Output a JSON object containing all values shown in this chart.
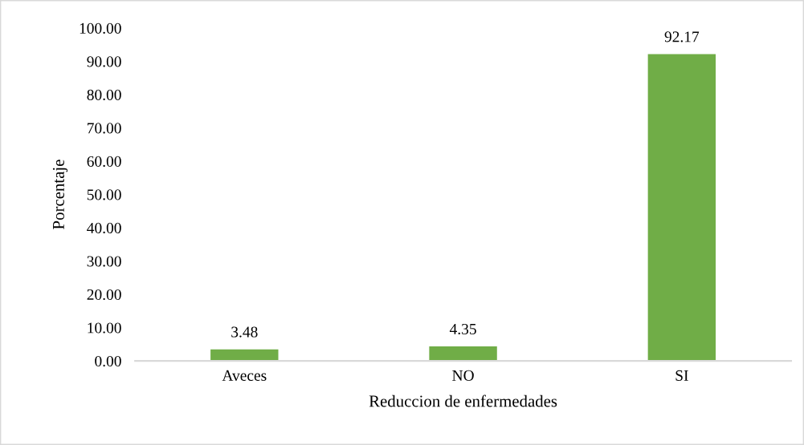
{
  "chart_data": {
    "type": "bar",
    "xlabel": "Reduccion de enfermedades",
    "ylabel": "Porcentaje",
    "categories": [
      "Aveces",
      "NO",
      "SI"
    ],
    "values": [
      3.48,
      4.35,
      92.17
    ],
    "color": "#70ad47",
    "ylim": [
      0,
      100
    ],
    "yticks": [
      {
        "value": 0,
        "label": "0.00"
      },
      {
        "value": 10,
        "label": "10.00"
      },
      {
        "value": 20,
        "label": "20.00"
      },
      {
        "value": 30,
        "label": "30.00"
      },
      {
        "value": 40,
        "label": "40.00"
      },
      {
        "value": 50,
        "label": "50.00"
      },
      {
        "value": 60,
        "label": "60.00"
      },
      {
        "value": 70,
        "label": "70.00"
      },
      {
        "value": 80,
        "label": "80.00"
      },
      {
        "value": 90,
        "label": "90.00"
      },
      {
        "value": 100,
        "label": "100.00"
      }
    ],
    "data_labels": true,
    "grid": false,
    "legend": false
  }
}
